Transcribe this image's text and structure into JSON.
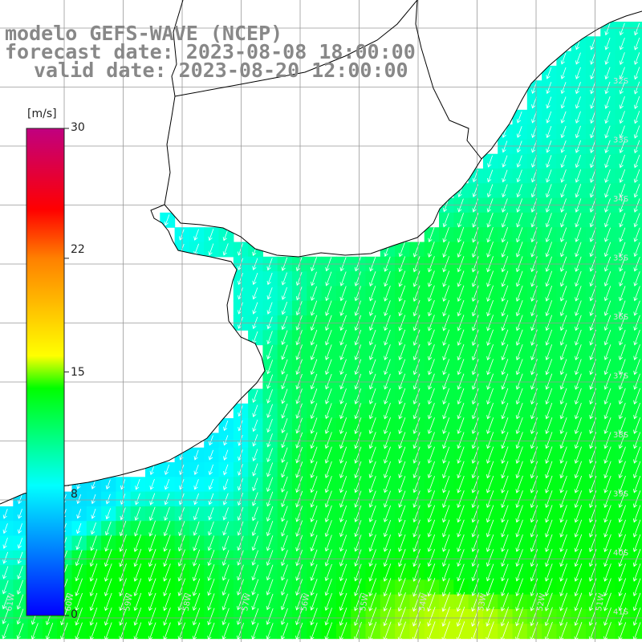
{
  "title": {
    "line1": "modelo GEFS-WAVE (NCEP)",
    "line2": "forecast date: 2023-08-08 18:00:00",
    "line3": "valid date: 2023-08-20 12:00:00"
  },
  "colorbar": {
    "unit": "[m/s]",
    "min": 0,
    "max": 30,
    "ticks": [
      {
        "label": "30",
        "value": 30
      },
      {
        "label": "22",
        "value": 22
      },
      {
        "label": "15",
        "value": 15
      },
      {
        "label": "8",
        "value": 8
      },
      {
        "label": "0",
        "value": 0
      }
    ],
    "stops": [
      {
        "value": 0,
        "color": "#0000ff"
      },
      {
        "value": 8,
        "color": "#00ffff"
      },
      {
        "value": 14,
        "color": "#00ff00"
      },
      {
        "value": 16,
        "color": "#ffff00"
      },
      {
        "value": 22,
        "color": "#ff8000"
      },
      {
        "value": 25,
        "color": "#ff0000"
      },
      {
        "value": 30,
        "color": "#c00080"
      }
    ]
  },
  "map": {
    "land_color": "#ffffff",
    "coast_color": "#000000",
    "grid_color": "#999999",
    "arrow_color": "#ffffff",
    "lat_labels": [
      "32S",
      "33S",
      "34S",
      "35S",
      "36S",
      "37S",
      "38S",
      "39S",
      "40S",
      "41S"
    ],
    "lon_labels": [
      "61W",
      "60W",
      "59W",
      "58W",
      "57W",
      "56W",
      "55W",
      "54W",
      "53W",
      "52W",
      "51W"
    ]
  },
  "field": {
    "description_free": true,
    "direction_deg_from_north": 200,
    "anchors": [
      {
        "col": 30,
        "row": 5,
        "speed": 8.5
      },
      {
        "col": 26,
        "row": 10,
        "speed": 9.5
      },
      {
        "col": 20,
        "row": 13,
        "speed": 11
      },
      {
        "col": 10,
        "row": 13,
        "speed": 8.3
      },
      {
        "col": 16,
        "row": 18,
        "speed": 9
      },
      {
        "col": 22,
        "row": 22,
        "speed": 12
      },
      {
        "col": 30,
        "row": 18,
        "speed": 12.5
      },
      {
        "col": 12,
        "row": 27,
        "speed": 7.5
      },
      {
        "col": 4,
        "row": 31,
        "speed": 7
      },
      {
        "col": 24,
        "row": 30,
        "speed": 13
      },
      {
        "col": 32,
        "row": 36,
        "speed": 13.5
      },
      {
        "col": 8,
        "row": 38,
        "speed": 14
      },
      {
        "col": 31,
        "row": 41,
        "speed": 15.5
      }
    ]
  }
}
